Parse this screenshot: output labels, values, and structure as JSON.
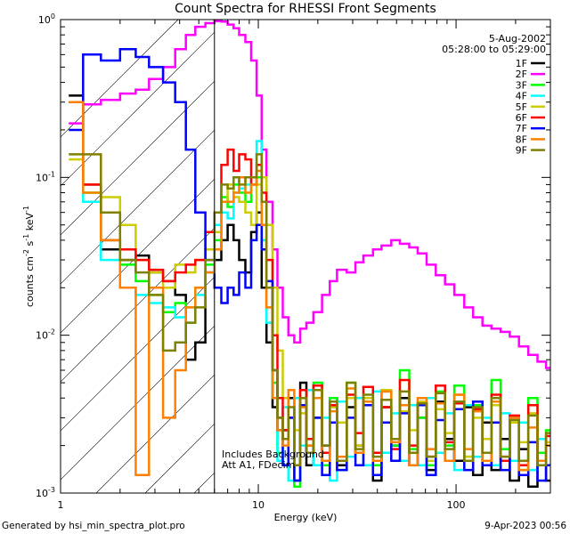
{
  "chart_data": {
    "type": "line",
    "title": "Count Spectra for RHESSI Front Segments",
    "xlabel": "Energy (keV)",
    "ylabel_parts": {
      "pre": "counts cm",
      "e1": "-2",
      "mid1": " s",
      "e2": "-1",
      "mid2": " keV",
      "e3": "-1"
    },
    "x_scale": "log",
    "y_scale": "log",
    "xlim": [
      1,
      300
    ],
    "ylim": [
      0.001,
      1
    ],
    "x_ticks": [
      {
        "v": 1,
        "label": "1"
      },
      {
        "v": 10,
        "label": "10"
      },
      {
        "v": 100,
        "label": "100"
      }
    ],
    "y_ticks": [
      {
        "v": 1,
        "base": "10",
        "exp": "0"
      },
      {
        "v": 0.1,
        "base": "10",
        "exp": "-1"
      },
      {
        "v": 0.01,
        "base": "10",
        "exp": "-2"
      },
      {
        "v": 0.001,
        "base": "10",
        "exp": "-3"
      }
    ],
    "date": "5-Aug-2002",
    "time_range": "05:28:00 to 05:29:00",
    "annotation_lines": [
      "Includes Background",
      "Att A1, FDecim"
    ],
    "attenuator_energy": 6,
    "hatched_region": [
      1,
      6
    ],
    "series": [
      {
        "name": "1F",
        "color": "#000000",
        "x": [
          1.1,
          1.3,
          1.6,
          2.0,
          2.4,
          2.8,
          3.3,
          3.8,
          4.3,
          4.8,
          5.4,
          6.0,
          6.5,
          7.0,
          7.5,
          8.0,
          8.6,
          9.2,
          9.8,
          10.4,
          11.0,
          11.8,
          12.5,
          13.3,
          14.2,
          15.2,
          16.3,
          17.5,
          19,
          21,
          23,
          25,
          28,
          31,
          34,
          38,
          42,
          47,
          52,
          58,
          64,
          71,
          79,
          88,
          98,
          110,
          122,
          136,
          151,
          168,
          187,
          208,
          232,
          258,
          285
        ],
        "y": [
          0.33,
          0.09,
          0.035,
          0.03,
          0.032,
          0.025,
          0.022,
          0.018,
          0.007,
          0.009,
          0.025,
          0.03,
          0.04,
          0.05,
          0.04,
          0.03,
          0.025,
          0.045,
          0.06,
          0.02,
          0.009,
          0.0035,
          0.003,
          0.0025,
          0.004,
          0.0012,
          0.005,
          0.0015,
          0.003,
          0.002,
          0.004,
          0.0015,
          0.0035,
          0.002,
          0.004,
          0.0012,
          0.0035,
          0.002,
          0.004,
          0.0018,
          0.003,
          0.0014,
          0.0038,
          0.0022,
          0.0016,
          0.0035,
          0.0013,
          0.0028,
          0.0014,
          0.0022,
          0.0012,
          0.0019,
          0.0011,
          0.0016,
          0.0012
        ]
      },
      {
        "name": "2F",
        "color": "#ff00ff",
        "x": [
          1.1,
          1.3,
          1.6,
          2.0,
          2.4,
          2.8,
          3.3,
          3.8,
          4.3,
          4.8,
          5.4,
          6.0,
          6.5,
          7.0,
          7.5,
          8.0,
          8.6,
          9.2,
          9.8,
          10.4,
          11.0,
          11.8,
          12.5,
          13.3,
          14.2,
          15.2,
          16.3,
          17.5,
          19,
          21,
          23,
          25,
          28,
          31,
          34,
          38,
          42,
          47,
          52,
          58,
          64,
          71,
          79,
          88,
          98,
          110,
          122,
          136,
          151,
          168,
          187,
          208,
          232,
          258,
          285
        ],
        "y": [
          0.22,
          0.29,
          0.31,
          0.34,
          0.36,
          0.42,
          0.5,
          0.65,
          0.8,
          0.9,
          0.95,
          0.98,
          0.97,
          0.93,
          0.88,
          0.8,
          0.72,
          0.55,
          0.33,
          0.15,
          0.07,
          0.035,
          0.02,
          0.013,
          0.01,
          0.009,
          0.011,
          0.012,
          0.014,
          0.018,
          0.022,
          0.026,
          0.025,
          0.029,
          0.032,
          0.035,
          0.037,
          0.04,
          0.038,
          0.036,
          0.033,
          0.028,
          0.024,
          0.021,
          0.018,
          0.015,
          0.013,
          0.0115,
          0.011,
          0.0105,
          0.0098,
          0.0085,
          0.0075,
          0.0068,
          0.0062
        ]
      },
      {
        "name": "3F",
        "color": "#00ff00",
        "x": [
          1.1,
          1.3,
          1.6,
          2.0,
          2.4,
          2.8,
          3.3,
          3.8,
          4.3,
          4.8,
          5.4,
          6.0,
          6.5,
          7.0,
          7.5,
          8.0,
          8.6,
          9.2,
          9.8,
          10.4,
          11.0,
          11.8,
          12.5,
          13.3,
          14.2,
          15.2,
          16.3,
          17.5,
          19,
          21,
          23,
          25,
          28,
          31,
          34,
          38,
          42,
          47,
          52,
          58,
          64,
          71,
          79,
          88,
          98,
          110,
          122,
          136,
          151,
          168,
          187,
          208,
          232,
          258,
          285
        ],
        "y": [
          0.3,
          0.08,
          0.04,
          0.028,
          0.022,
          0.018,
          0.014,
          0.016,
          0.015,
          0.02,
          0.028,
          0.04,
          0.075,
          0.065,
          0.09,
          0.08,
          0.07,
          0.09,
          0.1,
          0.04,
          0.015,
          0.005,
          0.0018,
          0.0015,
          0.003,
          0.0011,
          0.0045,
          0.002,
          0.005,
          0.0015,
          0.004,
          0.0014,
          0.005,
          0.0018,
          0.004,
          0.0015,
          0.0045,
          0.002,
          0.006,
          0.0019,
          0.003,
          0.0015,
          0.0044,
          0.002,
          0.0048,
          0.0017,
          0.0036,
          0.0015,
          0.0052,
          0.0019,
          0.003,
          0.0014,
          0.004,
          0.0018,
          0.0025
        ]
      },
      {
        "name": "4F",
        "color": "#00ffff",
        "x": [
          1.1,
          1.3,
          1.6,
          2.0,
          2.4,
          2.8,
          3.3,
          3.8,
          4.3,
          4.8,
          5.4,
          6.0,
          6.5,
          7.0,
          7.5,
          8.0,
          8.6,
          9.2,
          9.8,
          10.4,
          11.0,
          11.8,
          12.5,
          13.3,
          14.2,
          15.2,
          16.3,
          17.5,
          19,
          21,
          23,
          25,
          28,
          31,
          34,
          38,
          42,
          47,
          52,
          58,
          64,
          71,
          79,
          88,
          98,
          110,
          122,
          136,
          151,
          168,
          187,
          208,
          232,
          258,
          285
        ],
        "y": [
          0.3,
          0.07,
          0.03,
          0.02,
          0.018,
          0.016,
          0.015,
          0.013,
          0.012,
          0.018,
          0.025,
          0.05,
          0.06,
          0.055,
          0.08,
          0.085,
          0.09,
          0.1,
          0.17,
          0.04,
          0.012,
          0.004,
          0.0016,
          0.0035,
          0.0012,
          0.004,
          0.002,
          0.0045,
          0.0015,
          0.003,
          0.0012,
          0.0038,
          0.0017,
          0.004,
          0.0015,
          0.0044,
          0.0018,
          0.0032,
          0.0016,
          0.0036,
          0.0015,
          0.004,
          0.0018,
          0.0032,
          0.0014,
          0.0036,
          0.0017,
          0.003,
          0.0015,
          0.0032,
          0.0016,
          0.0028,
          0.0014,
          0.0022,
          0.0015
        ]
      },
      {
        "name": "5F",
        "color": "#cccc00",
        "x": [
          1.1,
          1.3,
          1.6,
          2.0,
          2.4,
          2.8,
          3.3,
          3.8,
          4.3,
          4.8,
          5.4,
          6.0,
          6.5,
          7.0,
          7.5,
          8.0,
          8.6,
          9.2,
          9.8,
          10.4,
          11.0,
          11.8,
          12.5,
          13.3,
          14.2,
          15.2,
          16.3,
          17.5,
          19,
          21,
          23,
          25,
          28,
          31,
          34,
          38,
          42,
          47,
          52,
          58,
          64,
          71,
          79,
          88,
          98,
          110,
          122,
          136,
          151,
          168,
          187,
          208,
          232,
          258,
          285
        ],
        "y": [
          0.13,
          0.09,
          0.075,
          0.05,
          0.03,
          0.025,
          0.02,
          0.028,
          0.025,
          0.03,
          0.035,
          0.045,
          0.07,
          0.09,
          0.075,
          0.07,
          0.06,
          0.05,
          0.09,
          0.1,
          0.05,
          0.02,
          0.008,
          0.004,
          0.003,
          0.0025,
          0.0032,
          0.0022,
          0.004,
          0.0018,
          0.0035,
          0.0028,
          0.004,
          0.002,
          0.004,
          0.0016,
          0.0045,
          0.0022,
          0.0033,
          0.0025,
          0.0038,
          0.0016,
          0.0034,
          0.0024,
          0.0042,
          0.0017,
          0.003,
          0.0022,
          0.0036,
          0.0016,
          0.0028,
          0.0021,
          0.0032,
          0.0016,
          0.0021
        ]
      },
      {
        "name": "6F",
        "color": "#ff0000",
        "x": [
          1.1,
          1.3,
          1.6,
          2.0,
          2.4,
          2.8,
          3.3,
          3.8,
          4.3,
          4.8,
          5.4,
          6.0,
          6.5,
          7.0,
          7.5,
          8.0,
          8.6,
          9.2,
          9.8,
          10.4,
          11.0,
          11.8,
          12.5,
          13.3,
          14.2,
          15.2,
          16.3,
          17.5,
          19,
          21,
          23,
          25,
          28,
          31,
          34,
          38,
          42,
          47,
          52,
          58,
          64,
          71,
          79,
          88,
          98,
          110,
          122,
          136,
          151,
          168,
          187,
          208,
          232,
          258,
          285
        ],
        "y": [
          0.3,
          0.09,
          0.04,
          0.035,
          0.03,
          0.026,
          0.022,
          0.025,
          0.028,
          0.03,
          0.045,
          0.06,
          0.12,
          0.15,
          0.11,
          0.14,
          0.13,
          0.09,
          0.12,
          0.08,
          0.03,
          0.01,
          0.004,
          0.0025,
          0.003,
          0.0015,
          0.0045,
          0.0022,
          0.0048,
          0.0018,
          0.0036,
          0.0016,
          0.0042,
          0.0024,
          0.0047,
          0.0018,
          0.0035,
          0.0019,
          0.0052,
          0.002,
          0.0036,
          0.0017,
          0.0048,
          0.0021,
          0.0037,
          0.0016,
          0.0034,
          0.0018,
          0.0042,
          0.0016,
          0.0031,
          0.0015,
          0.0036,
          0.0016,
          0.0023
        ]
      },
      {
        "name": "7F",
        "color": "#0000ff",
        "x": [
          1.1,
          1.3,
          1.6,
          2.0,
          2.4,
          2.8,
          3.3,
          3.8,
          4.3,
          4.8,
          5.4,
          6.0,
          6.5,
          7.0,
          7.5,
          8.0,
          8.6,
          9.2,
          9.8,
          10.4,
          11.0,
          11.8,
          12.5,
          13.3,
          14.2,
          15.2,
          16.3,
          17.5,
          19,
          21,
          23,
          25,
          28,
          31,
          34,
          38,
          42,
          47,
          52,
          58,
          64,
          71,
          79,
          88,
          98,
          110,
          122,
          136,
          151,
          168,
          187,
          208,
          232,
          258,
          285
        ],
        "y": [
          0.2,
          0.6,
          0.55,
          0.65,
          0.58,
          0.5,
          0.4,
          0.3,
          0.15,
          0.06,
          0.03,
          0.02,
          0.016,
          0.02,
          0.018,
          0.025,
          0.02,
          0.04,
          0.05,
          0.035,
          0.022,
          0.006,
          0.0025,
          0.0015,
          0.003,
          0.0012,
          0.0036,
          0.0018,
          0.003,
          0.0013,
          0.0028,
          0.0014,
          0.003,
          0.0015,
          0.0036,
          0.0013,
          0.0028,
          0.0016,
          0.0032,
          0.0015,
          0.0036,
          0.0013,
          0.0029,
          0.0016,
          0.0034,
          0.0014,
          0.0038,
          0.0015,
          0.0028,
          0.0014,
          0.003,
          0.0013,
          0.0021,
          0.0012,
          0.0015
        ]
      },
      {
        "name": "8F",
        "color": "#ff8000",
        "x": [
          1.1,
          1.3,
          1.6,
          2.0,
          2.4,
          2.8,
          3.3,
          3.8,
          4.3,
          4.8,
          5.4,
          6.0,
          6.5,
          7.0,
          7.5,
          8.0,
          8.6,
          9.2,
          9.8,
          10.4,
          11.0,
          11.8,
          12.5,
          13.3,
          14.2,
          15.2,
          16.3,
          17.5,
          19,
          21,
          23,
          25,
          28,
          31,
          34,
          38,
          42,
          47,
          52,
          58,
          64,
          71,
          79,
          88,
          98,
          110,
          122,
          136,
          151,
          168,
          187,
          208,
          232,
          258,
          285
        ],
        "y": [
          0.3,
          0.08,
          0.04,
          0.02,
          0.0013,
          0.02,
          0.003,
          0.006,
          0.015,
          0.02,
          0.025,
          0.035,
          0.07,
          0.07,
          0.08,
          0.1,
          0.08,
          0.09,
          0.11,
          0.05,
          0.015,
          0.004,
          0.0025,
          0.002,
          0.0045,
          0.0015,
          0.0035,
          0.002,
          0.004,
          0.0016,
          0.0033,
          0.0017,
          0.0046,
          0.0018,
          0.0038,
          0.0016,
          0.0044,
          0.0021,
          0.0036,
          0.0015,
          0.004,
          0.0019,
          0.0037,
          0.0016,
          0.0042,
          0.0019,
          0.0033,
          0.0016,
          0.0038,
          0.0017,
          0.003,
          0.0014,
          0.0026,
          0.0016,
          0.002
        ]
      },
      {
        "name": "9F",
        "color": "#808000",
        "x": [
          1.1,
          1.3,
          1.6,
          2.0,
          2.4,
          2.8,
          3.3,
          3.8,
          4.3,
          4.8,
          5.4,
          6.0,
          6.5,
          7.0,
          7.5,
          8.0,
          8.6,
          9.2,
          9.8,
          10.4,
          11.0,
          11.8,
          12.5,
          13.3,
          14.2,
          15.2,
          16.3,
          17.5,
          19,
          21,
          23,
          25,
          28,
          31,
          34,
          38,
          42,
          47,
          52,
          58,
          64,
          71,
          79,
          88,
          98,
          110,
          122,
          136,
          151,
          168,
          187,
          208,
          232,
          258,
          285
        ],
        "y": [
          0.14,
          0.14,
          0.06,
          0.03,
          0.025,
          0.018,
          0.008,
          0.009,
          0.012,
          0.015,
          0.03,
          0.06,
          0.09,
          0.085,
          0.1,
          0.09,
          0.1,
          0.1,
          0.14,
          0.07,
          0.02,
          0.006,
          0.003,
          0.0022,
          0.0035,
          0.0015,
          0.004,
          0.0018,
          0.0045,
          0.002,
          0.0038,
          0.0016,
          0.005,
          0.0019,
          0.0042,
          0.0017,
          0.0039,
          0.0022,
          0.0044,
          0.0018,
          0.0037,
          0.0017,
          0.0043,
          0.0019,
          0.0038,
          0.0016,
          0.0035,
          0.0018,
          0.004,
          0.0017,
          0.0029,
          0.0016,
          0.0031,
          0.0015,
          0.0024
        ]
      }
    ]
  },
  "footer": {
    "left": "Generated by hsi_min_spectra_plot.pro",
    "right": "9-Apr-2023 00:56"
  }
}
